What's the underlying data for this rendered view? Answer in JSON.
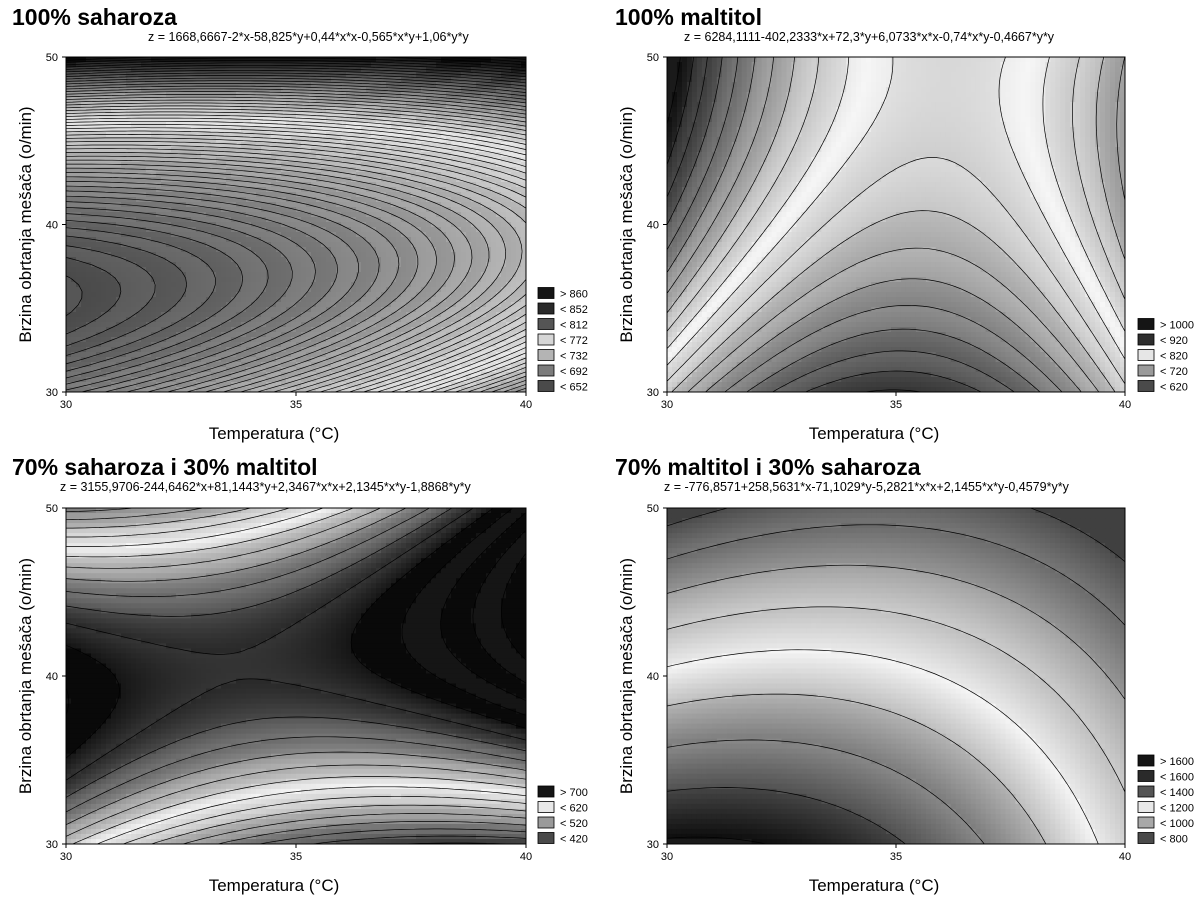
{
  "chart_data": [
    {
      "type": "contour",
      "title": "100% saharoza",
      "equation": "z = 1668,6667-2*x-58,825*y+0,44*x*x-0,565*x*y+1,06*y*y",
      "coef": [
        1668.6667,
        -2,
        -58.825,
        0.44,
        -0.565,
        1.06
      ],
      "xlabel": "Temperatura",
      "xlabel_unit": "(°C)",
      "ylabel": "Brzina obrtanja mešača (o/min)",
      "xlim": [
        30,
        40
      ],
      "ylim": [
        30,
        50
      ],
      "xticks": [
        "30",
        "35",
        "40"
      ],
      "yticks": [
        "30",
        "40",
        "50"
      ],
      "levels_step": 4,
      "z_range": [
        652,
        860
      ],
      "dense_lines": true,
      "legend": [
        {
          "label": "> 860",
          "color": "#151515"
        },
        {
          "label": "< 852",
          "color": "#2a2a2a"
        },
        {
          "label": "< 812",
          "color": "#555555"
        },
        {
          "label": "< 772",
          "color": "#d6d6d6"
        },
        {
          "label": "< 732",
          "color": "#b4b4b4"
        },
        {
          "label": "< 692",
          "color": "#7c7c7c"
        },
        {
          "label": "< 652",
          "color": "#4a4a4a"
        }
      ],
      "legend_position": "bottom-right"
    },
    {
      "type": "contour",
      "title": "100% maltitol",
      "equation": "z = 6284,1111-402,2333*x+72,3*y+6,0733*x*x-0,74*x*y-0,4667*y*y",
      "coef": [
        6284.1111,
        -402.2333,
        72.3,
        6.0733,
        -0.74,
        -0.4667
      ],
      "xlabel": "Temperatura",
      "xlabel_unit": "(°C)",
      "ylabel": "Brzina obrtanja mešača (o/min)",
      "xlim": [
        30,
        40
      ],
      "ylim": [
        30,
        50
      ],
      "xticks": [
        "30",
        "35",
        "40"
      ],
      "yticks": [
        "30",
        "40",
        "50"
      ],
      "levels_step": 20,
      "z_range": [
        620,
        1000
      ],
      "dense_lines": false,
      "legend": [
        {
          "label": "> 1000",
          "color": "#151515"
        },
        {
          "label": "< 920",
          "color": "#2e2e2e"
        },
        {
          "label": "< 820",
          "color": "#e6e6e6"
        },
        {
          "label": "< 720",
          "color": "#9a9a9a"
        },
        {
          "label": "< 620",
          "color": "#4a4a4a"
        }
      ],
      "legend_position": "bottom-right"
    },
    {
      "type": "contour",
      "title": "70% saharoza i 30% maltitol",
      "equation": "z = 3155,9706-244,6462*x+81,1443*y+2,3467*x*x+2,1345*x*y-1,8868*y*y",
      "coef": [
        3155.9706,
        -244.6462,
        81.1443,
        2.3467,
        2.1345,
        -1.8868
      ],
      "xlabel": "Temperatura",
      "xlabel_unit": "(°C)",
      "ylabel": "Brzina obrtanja mešača (o/min)",
      "xlim": [
        30,
        40
      ],
      "ylim": [
        30,
        50
      ],
      "xticks": [
        "30",
        "35",
        "40"
      ],
      "yticks": [
        "30",
        "40",
        "50"
      ],
      "levels_step": 20,
      "z_range": [
        420,
        700
      ],
      "dense_lines": false,
      "legend": [
        {
          "label": "> 700",
          "color": "#151515"
        },
        {
          "label": "< 620",
          "color": "#e8e8e8"
        },
        {
          "label": "< 520",
          "color": "#9a9a9a"
        },
        {
          "label": "< 420",
          "color": "#4a4a4a"
        }
      ],
      "legend_position": "bottom-right"
    },
    {
      "type": "contour",
      "title": "70% maltitol i 30% saharoza",
      "equation": "z = -776,8571+258,5631*x-71,1029*y-5,2821*x*x+2,1455*x*y-0,4579*y*y",
      "coef": [
        -776.8571,
        258.5631,
        -71.1029,
        -5.2821,
        2.1455,
        -0.4579
      ],
      "xlabel": "Temperatura",
      "xlabel_unit": "(°C)",
      "ylabel": "Brzina obrtanja mešača (o/min)",
      "xlim": [
        30,
        40
      ],
      "ylim": [
        30,
        50
      ],
      "xticks": [
        "30",
        "35",
        "40"
      ],
      "yticks": [
        "30",
        "40",
        "50"
      ],
      "levels_step": 100,
      "z_range": [
        800,
        1600
      ],
      "dense_lines": false,
      "legend": [
        {
          "label": "> 1600",
          "color": "#151515"
        },
        {
          "label": "< 1600",
          "color": "#2a2a2a"
        },
        {
          "label": "< 1400",
          "color": "#555555"
        },
        {
          "label": "< 1200",
          "color": "#e8e8e8"
        },
        {
          "label": "< 1000",
          "color": "#a8a8a8"
        },
        {
          "label": "< 800",
          "color": "#4a4a4a"
        }
      ],
      "legend_position": "bottom-right"
    }
  ]
}
